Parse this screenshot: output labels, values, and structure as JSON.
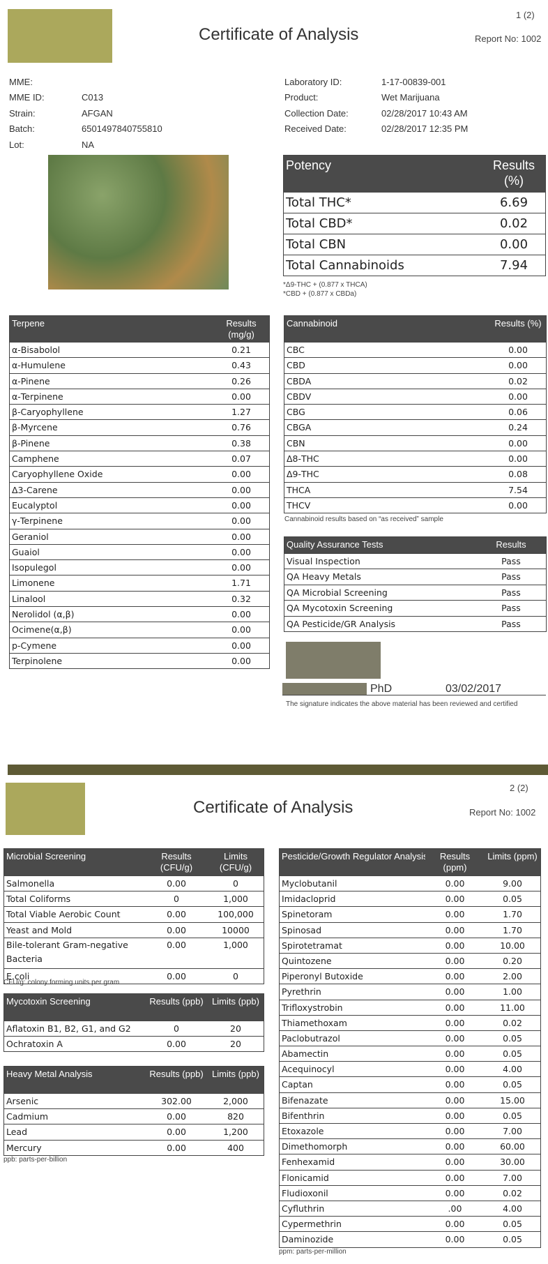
{
  "page1": {
    "page_num": "1 (2)",
    "title": "Certificate of Analysis",
    "report_no": "Report No: 1002",
    "info_left": [
      [
        "MME:",
        ""
      ],
      [
        "MME ID:",
        "C013"
      ],
      [
        "Strain:",
        "AFGAN"
      ],
      [
        "Batch:",
        "6501497840755810"
      ],
      [
        "Lot:",
        "NA"
      ]
    ],
    "info_right": [
      [
        "Laboratory ID:",
        "1-17-00839-001"
      ],
      [
        "Product:",
        "Wet Marijuana"
      ],
      [
        "Collection Date:",
        "02/28/2017 10:43 AM"
      ],
      [
        "Received Date:",
        "02/28/2017 12:35 PM"
      ]
    ],
    "potency": {
      "headers": [
        "Potency",
        "Results (%)"
      ],
      "rows": [
        [
          "Total THC*",
          "6.69"
        ],
        [
          "Total CBD*",
          "0.02"
        ],
        [
          "Total CBN",
          "0.00"
        ],
        [
          "Total Cannabinoids",
          "7.94"
        ]
      ],
      "notes": [
        "*Δ9-THC + (0.877 x THCA)",
        "*CBD + (0.877 x CBDa)"
      ]
    },
    "terpene": {
      "headers": [
        "Terpene",
        "Results (mg/g)"
      ],
      "rows": [
        [
          "α-Bisabolol",
          "0.21"
        ],
        [
          "α-Humulene",
          "0.43"
        ],
        [
          "α-Pinene",
          "0.26"
        ],
        [
          "α-Terpinene",
          "0.00"
        ],
        [
          "β-Caryophyllene",
          "1.27"
        ],
        [
          "β-Myrcene",
          "0.76"
        ],
        [
          "β-Pinene",
          "0.38"
        ],
        [
          "Camphene",
          "0.07"
        ],
        [
          "Caryophyllene Oxide",
          "0.00"
        ],
        [
          "Δ3-Carene",
          "0.00"
        ],
        [
          "Eucalyptol",
          "0.00"
        ],
        [
          "γ-Terpinene",
          "0.00"
        ],
        [
          "Geraniol",
          "0.00"
        ],
        [
          "Guaiol",
          "0.00"
        ],
        [
          "Isopulegol",
          "0.00"
        ],
        [
          "Limonene",
          "1.71"
        ],
        [
          "Linalool",
          "0.32"
        ],
        [
          "Nerolidol (α,β)",
          "0.00"
        ],
        [
          "Ocimene(α,β)",
          "0.00"
        ],
        [
          "p-Cymene",
          "0.00"
        ],
        [
          "Terpinolene",
          "0.00"
        ]
      ]
    },
    "cannabinoid": {
      "headers": [
        "Cannabinoid",
        "Results (%)"
      ],
      "rows": [
        [
          "CBC",
          "0.00"
        ],
        [
          "CBD",
          "0.00"
        ],
        [
          "CBDA",
          "0.02"
        ],
        [
          "CBDV",
          "0.00"
        ],
        [
          "CBG",
          "0.06"
        ],
        [
          "CBGA",
          "0.24"
        ],
        [
          "CBN",
          "0.00"
        ],
        [
          "Δ8-THC",
          "0.00"
        ],
        [
          "Δ9-THC",
          "0.08"
        ],
        [
          "THCA",
          "7.54"
        ],
        [
          "THCV",
          "0.00"
        ]
      ],
      "note": "Cannabinoid results based on “as received” sample"
    },
    "qa": {
      "headers": [
        "Quality Assurance Tests",
        "Results"
      ],
      "rows": [
        [
          "Visual Inspection",
          "Pass"
        ],
        [
          "QA Heavy Metals",
          "Pass"
        ],
        [
          "QA Microbial Screening",
          "Pass"
        ],
        [
          "QA Mycotoxin Screening",
          "Pass"
        ],
        [
          "QA Pesticide/GR Analysis",
          "Pass"
        ]
      ]
    },
    "signature": {
      "credential": "PhD",
      "date": "03/02/2017",
      "statement": "The signature indicates the above material has been reviewed and certified"
    }
  },
  "page2": {
    "page_num": "2 (2)",
    "title": "Certificate of Analysis",
    "report_no": "Report No: 1002",
    "microbial": {
      "headers": [
        "Microbial Screening",
        "Results (CFU/g)",
        "Limits (CFU/g)"
      ],
      "rows": [
        [
          "Salmonella",
          "0.00",
          "0"
        ],
        [
          "Total Coliforms",
          "0",
          "1,000"
        ],
        [
          "Total Viable Aerobic Count",
          "0.00",
          "100,000"
        ],
        [
          "Yeast and Mold",
          "0.00",
          "10000"
        ],
        [
          "Bile-tolerant Gram-negative Bacteria",
          "0.00",
          "1,000"
        ],
        [
          "E.coli",
          "0.00",
          "0"
        ]
      ],
      "note": "CFU/g: colony forming units per gram"
    },
    "mycotoxin": {
      "headers": [
        "Mycotoxin  Screening",
        "Results (ppb)",
        "Limits (ppb)"
      ],
      "rows": [
        [
          "Aflatoxin B1, B2, G1, and G2",
          "0",
          "20"
        ],
        [
          "Ochratoxin A",
          "0.00",
          "20"
        ]
      ]
    },
    "heavy_metal": {
      "headers": [
        "Heavy Metal Analysis",
        "Results (ppb)",
        "Limits (ppb)"
      ],
      "rows": [
        [
          "Arsenic",
          "302.00",
          "2,000"
        ],
        [
          "Cadmium",
          "0.00",
          "820"
        ],
        [
          "Lead",
          "0.00",
          "1,200"
        ],
        [
          "Mercury",
          "0.00",
          "400"
        ]
      ],
      "note": "ppb: parts-per-billion"
    },
    "pesticide": {
      "headers": [
        "Pesticide/Growth Regulator Analysis",
        "Results (ppm)",
        "Limits (ppm)"
      ],
      "rows": [
        [
          "Myclobutanil",
          "0.00",
          "9.00"
        ],
        [
          "Imidacloprid",
          "0.00",
          "0.05"
        ],
        [
          "Spinetoram",
          "0.00",
          "1.70"
        ],
        [
          "Spinosad",
          "0.00",
          "1.70"
        ],
        [
          "Spirotetramat",
          "0.00",
          "10.00"
        ],
        [
          "Quintozene",
          "0.00",
          "0.20"
        ],
        [
          "Piperonyl Butoxide",
          "0.00",
          "2.00"
        ],
        [
          "Pyrethrin",
          "0.00",
          "1.00"
        ],
        [
          "Trifloxystrobin",
          "0.00",
          "11.00"
        ],
        [
          "Thiamethoxam",
          "0.00",
          "0.02"
        ],
        [
          "Paclobutrazol",
          "0.00",
          "0.05"
        ],
        [
          "Abamectin",
          "0.00",
          "0.05"
        ],
        [
          "Acequinocyl",
          "0.00",
          "4.00"
        ],
        [
          "Captan",
          "0.00",
          "0.05"
        ],
        [
          "Bifenazate",
          "0.00",
          "15.00"
        ],
        [
          "Bifenthrin",
          "0.00",
          "0.05"
        ],
        [
          "Etoxazole",
          "0.00",
          "7.00"
        ],
        [
          "Dimethomorph",
          "0.00",
          "60.00"
        ],
        [
          "Fenhexamid",
          "0.00",
          "30.00"
        ],
        [
          "Flonicamid",
          "0.00",
          "7.00"
        ],
        [
          "Fludioxonil",
          "0.00",
          "0.02"
        ],
        [
          "Cyfluthrin",
          ".00",
          "4.00"
        ],
        [
          "Cypermethrin",
          "0.00",
          "0.05"
        ],
        [
          "Daminozide",
          "0.00",
          "0.05"
        ]
      ],
      "note": "ppm: parts-per-million"
    }
  },
  "colors": {
    "header_bg": "#4a4a4a",
    "logo": "#aba85c",
    "page_bar": "#5e5a35",
    "signature_block": "#7f7d6a"
  }
}
